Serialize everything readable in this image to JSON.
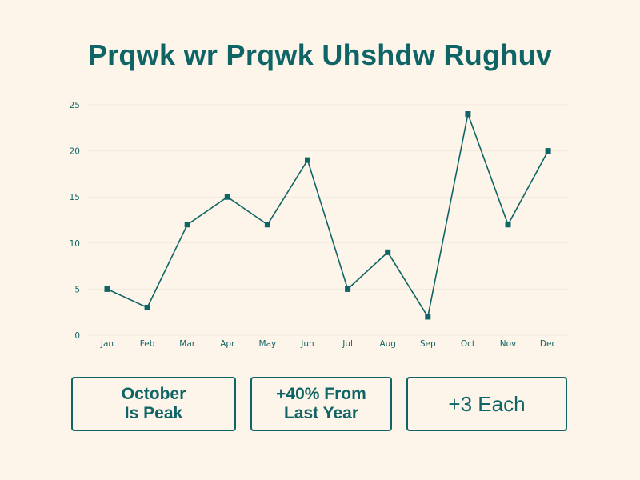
{
  "title": "Prqwk wr Prqwk Uhshdw Rughuv",
  "colors": {
    "line": "#0f6466",
    "background": "#fdf5e9",
    "grid": "#f1e9dd"
  },
  "chart_data": {
    "type": "line",
    "title": "Prqwk wr Prqwk Uhshdw Rughuv",
    "xlabel": "",
    "ylabel": "",
    "categories": [
      "Jan",
      "Feb",
      "Mar",
      "Apr",
      "May",
      "Jun",
      "Jul",
      "Aug",
      "Sep",
      "Oct",
      "Nov",
      "Dec"
    ],
    "values": [
      5,
      3,
      12,
      15,
      12,
      19,
      5,
      9,
      2,
      24,
      12,
      20
    ],
    "ylim": [
      0,
      25
    ],
    "yticks": [
      0,
      5,
      10,
      15,
      20,
      25
    ],
    "marker": "square",
    "grid": true,
    "legend": "none"
  },
  "cards": [
    {
      "text": "October\nIs Peak",
      "style": "bold"
    },
    {
      "text": "+40% From\nLast Year",
      "style": "bold"
    },
    {
      "text": "+3 Each",
      "style": "light"
    }
  ]
}
